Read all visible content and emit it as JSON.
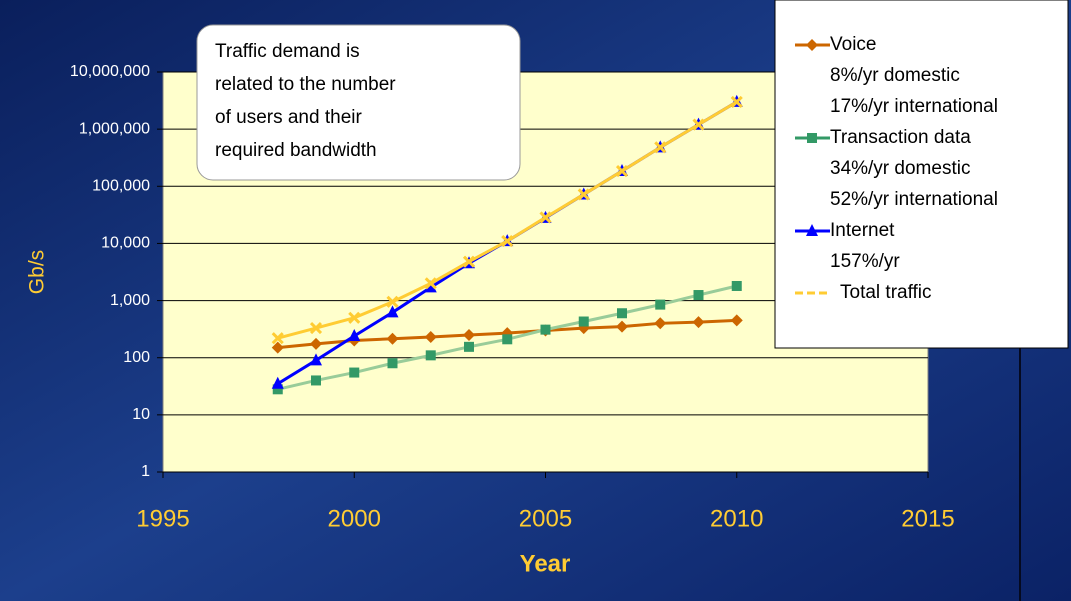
{
  "chart_data": {
    "type": "line",
    "x_label": "Year",
    "y_label": "Gb/s",
    "log_y": true,
    "grid": true,
    "legend_position": "upper right",
    "annotation": [
      "Traffic demand is",
      "related to the number",
      "of users and their",
      "required bandwidth"
    ],
    "x": [
      1998,
      1999,
      2000,
      2001,
      2002,
      2003,
      2004,
      2005,
      2006,
      2007,
      2008,
      2009,
      2010
    ],
    "xlim": [
      1995,
      2015
    ],
    "xticks": [
      1995,
      2000,
      2005,
      2010,
      2015
    ],
    "ylim": [
      1,
      10000000
    ],
    "yticks": [
      1,
      10,
      100,
      {
        "value": 1000,
        "label": "1,000"
      },
      {
        "value": 10000,
        "label": "10,000"
      },
      {
        "value": 100000,
        "label": "100,000"
      },
      {
        "value": 1000000,
        "label": "1,000,000"
      },
      {
        "value": 10000000,
        "label": "10,000,000"
      }
    ],
    "series": [
      {
        "name": "Voice",
        "description": [
          "8%/yr domestic",
          "17%/yr international"
        ],
        "color": "#cc6600",
        "marker": "diamond",
        "values": [
          150,
          175,
          200,
          215,
          230,
          250,
          270,
          300,
          330,
          350,
          400,
          420,
          450
        ]
      },
      {
        "name": "Transaction data",
        "description": [
          "34%/yr domestic",
          "52%/yr international"
        ],
        "color": "#99cc99",
        "marker_color": "#339966",
        "marker": "square",
        "values": [
          28,
          40,
          55,
          80,
          110,
          155,
          210,
          310,
          430,
          600,
          850,
          1250,
          1800
        ]
      },
      {
        "name": "Internet",
        "description": [
          "157%/yr"
        ],
        "color": "#0000ff",
        "marker": "triangle",
        "values": [
          35,
          90,
          240,
          620,
          1700,
          4500,
          11000,
          28000,
          72000,
          185000,
          480000,
          1200000,
          3000000
        ]
      },
      {
        "name": "Total traffic",
        "description": [],
        "color": "#ffcc33",
        "marker": "x",
        "values": [
          220,
          330,
          500,
          950,
          2000,
          4800,
          11000,
          28500,
          72000,
          185000,
          480000,
          1200000,
          3000000
        ]
      }
    ]
  }
}
